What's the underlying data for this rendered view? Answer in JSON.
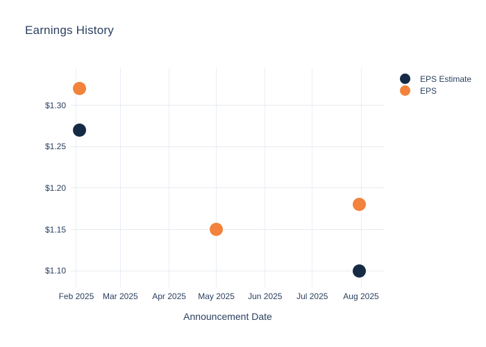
{
  "title": "Earnings History",
  "xaxis_title": "Announcement Date",
  "colors": {
    "background": "#ffffff",
    "text": "#2a3f5f",
    "grid_vertical": "#e9eef7",
    "grid_horizontal": "#e7eaef",
    "eps_estimate": "#162a45",
    "eps": "#f2823c"
  },
  "legend": {
    "position": "right",
    "items": [
      {
        "label": "EPS Estimate",
        "color": "#162a45"
      },
      {
        "label": "EPS",
        "color": "#f2823c"
      }
    ]
  },
  "chart_data": {
    "type": "scatter",
    "title": "Earnings History",
    "xlabel": "Announcement Date",
    "ylabel": "",
    "grid": true,
    "legend_position": "right",
    "x_tick_labels": [
      "Feb 2025",
      "Mar 2025",
      "Apr 2025",
      "May 2025",
      "Jun 2025",
      "Jul 2025",
      "Aug 2025"
    ],
    "x_tick_days_from_feb1": [
      0,
      28,
      59,
      89,
      120,
      150,
      181
    ],
    "x_range_days": [
      -3.5,
      196
    ],
    "y_tick_values": [
      1.3,
      1.25,
      1.2,
      1.15,
      1.1
    ],
    "y_tick_labels": [
      "$1.30",
      "$1.25",
      "$1.20",
      "$1.15",
      "$1.10"
    ],
    "y_range": [
      1.08,
      1.345
    ],
    "series": [
      {
        "name": "EPS Estimate",
        "color": "#162a45",
        "points": [
          {
            "x_day": 2,
            "x_near": "Feb 2025",
            "y": 1.27
          },
          {
            "x_day": 180,
            "x_near": "Aug 2025",
            "y": 1.1
          }
        ]
      },
      {
        "name": "EPS",
        "color": "#f2823c",
        "points": [
          {
            "x_day": 2,
            "x_near": "Feb 2025",
            "y": 1.32
          },
          {
            "x_day": 89,
            "x_near": "May 2025",
            "y": 1.15
          },
          {
            "x_day": 180,
            "x_near": "Aug 2025",
            "y": 1.18
          }
        ]
      }
    ]
  }
}
